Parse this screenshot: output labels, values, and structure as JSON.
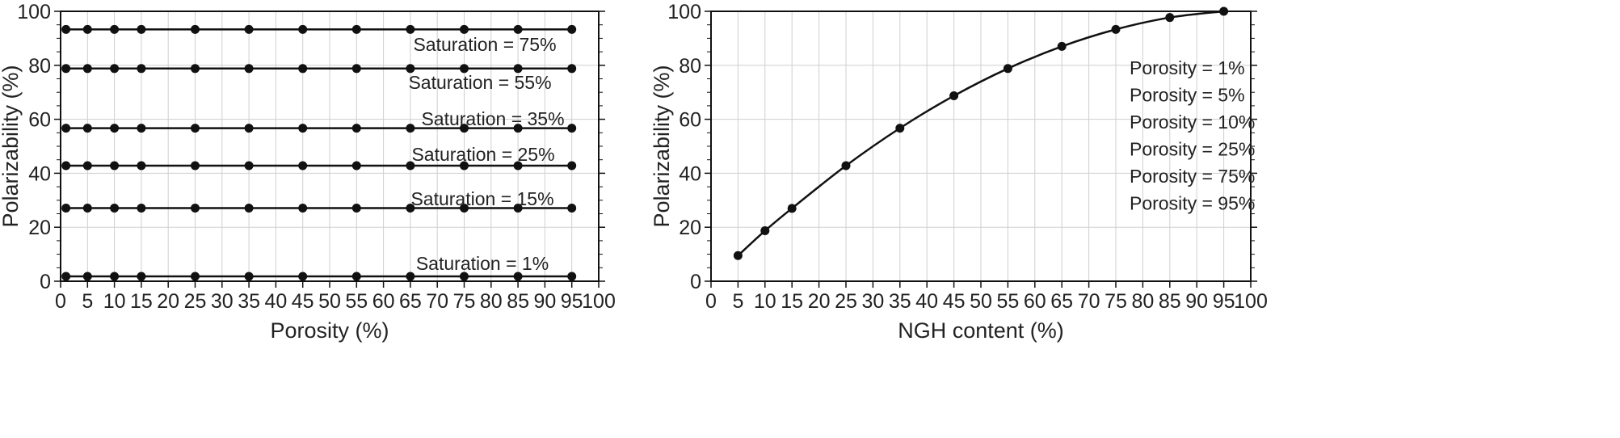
{
  "chart_data": [
    {
      "type": "line",
      "title": "",
      "xlabel": "Porosity (%)",
      "ylabel": "Polarizability (%)",
      "xlim": [
        0,
        100
      ],
      "ylim": [
        0,
        100
      ],
      "xticks": [
        0,
        5,
        10,
        15,
        20,
        25,
        30,
        35,
        40,
        45,
        50,
        55,
        60,
        65,
        70,
        75,
        80,
        85,
        90,
        95,
        100
      ],
      "yticks": [
        0,
        20,
        40,
        60,
        80,
        100
      ],
      "grid": true,
      "x": [
        1,
        5,
        10,
        15,
        25,
        35,
        45,
        55,
        65,
        75,
        85,
        95
      ],
      "series": [
        {
          "name": "Saturation = 75%",
          "values": [
            93.3,
            93.3,
            93.3,
            93.3,
            93.3,
            93.3,
            93.3,
            93.3,
            93.3,
            93.3,
            93.3,
            93.3
          ]
        },
        {
          "name": "Saturation = 55%",
          "values": [
            78.8,
            78.8,
            78.8,
            78.8,
            78.8,
            78.8,
            78.8,
            78.8,
            78.8,
            78.8,
            78.8,
            78.8
          ]
        },
        {
          "name": "Saturation = 35%",
          "values": [
            56.7,
            56.7,
            56.7,
            56.7,
            56.7,
            56.7,
            56.7,
            56.7,
            56.7,
            56.7,
            56.7,
            56.7
          ]
        },
        {
          "name": "Saturation = 25%",
          "values": [
            42.8,
            42.8,
            42.8,
            42.8,
            42.8,
            42.8,
            42.8,
            42.8,
            42.8,
            42.8,
            42.8,
            42.8
          ]
        },
        {
          "name": "Saturation = 15%",
          "values": [
            27.1,
            27.1,
            27.1,
            27.1,
            27.1,
            27.1,
            27.1,
            27.1,
            27.1,
            27.1,
            27.1,
            27.1
          ]
        },
        {
          "name": "Saturation = 1%",
          "values": [
            1.8,
            1.8,
            1.8,
            1.8,
            1.8,
            1.8,
            1.8,
            1.8,
            1.8,
            1.8,
            1.8,
            1.8
          ]
        }
      ]
    },
    {
      "type": "line",
      "title": "",
      "xlabel": "NGH content (%)",
      "ylabel": "Polarizability (%)",
      "xlim": [
        0,
        100
      ],
      "ylim": [
        0,
        100
      ],
      "xticks": [
        0,
        5,
        10,
        15,
        20,
        25,
        30,
        35,
        40,
        45,
        50,
        55,
        60,
        65,
        70,
        75,
        80,
        85,
        90,
        95,
        100
      ],
      "yticks": [
        0,
        20,
        40,
        60,
        80,
        100
      ],
      "grid": true,
      "x": [
        5,
        10,
        15,
        25,
        35,
        45,
        55,
        65,
        75,
        85,
        95
      ],
      "series": [
        {
          "values": [
            9.5,
            18.7,
            27.0,
            42.8,
            56.7,
            68.7,
            78.8,
            87.0,
            93.3,
            97.7,
            100.0
          ]
        }
      ],
      "annotations": [
        "Porosity = 1%",
        "Porosity = 5%",
        "Porosity = 10%",
        "Porosity = 25%",
        "Porosity = 75%",
        "Porosity = 95%"
      ]
    }
  ]
}
